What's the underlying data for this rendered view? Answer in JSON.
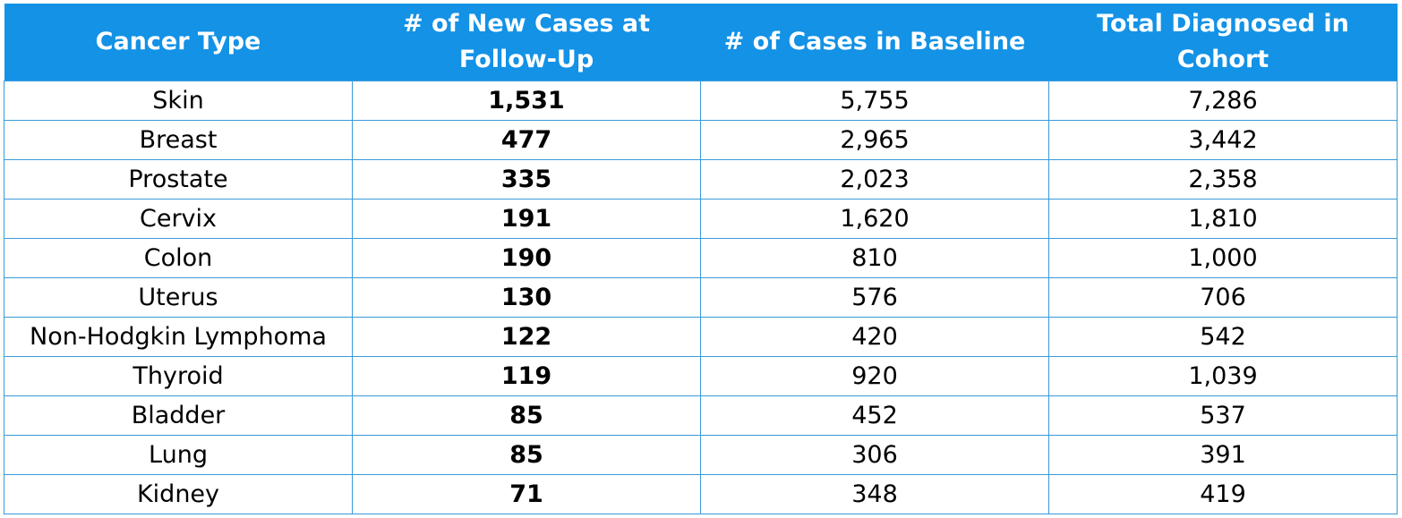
{
  "chart_data": {
    "type": "table",
    "columns": [
      "Cancer Type",
      "# of New Cases at Follow-Up",
      "# of Cases in Baseline",
      "Total Diagnosed in Cohort"
    ],
    "rows": [
      [
        "Skin",
        "1,531",
        "5,755",
        "7,286"
      ],
      [
        "Breast",
        "477",
        "2,965",
        "3,442"
      ],
      [
        "Prostate",
        "335",
        "2,023",
        "2,358"
      ],
      [
        "Cervix",
        "191",
        "1,620",
        "1,810"
      ],
      [
        "Colon",
        "190",
        "810",
        "1,000"
      ],
      [
        "Uterus",
        "130",
        "576",
        "706"
      ],
      [
        "Non-Hodgkin Lymphoma",
        "122",
        "420",
        "542"
      ],
      [
        "Thyroid",
        "119",
        "920",
        "1,039"
      ],
      [
        "Bladder",
        "85",
        "452",
        "537"
      ],
      [
        "Lung",
        "85",
        "306",
        "391"
      ],
      [
        "Kidney",
        "71",
        "348",
        "419"
      ]
    ]
  },
  "colors": {
    "header_bg": "#1392e6",
    "header_text": "#ffffff",
    "grid_line": "#3a9ad9"
  }
}
